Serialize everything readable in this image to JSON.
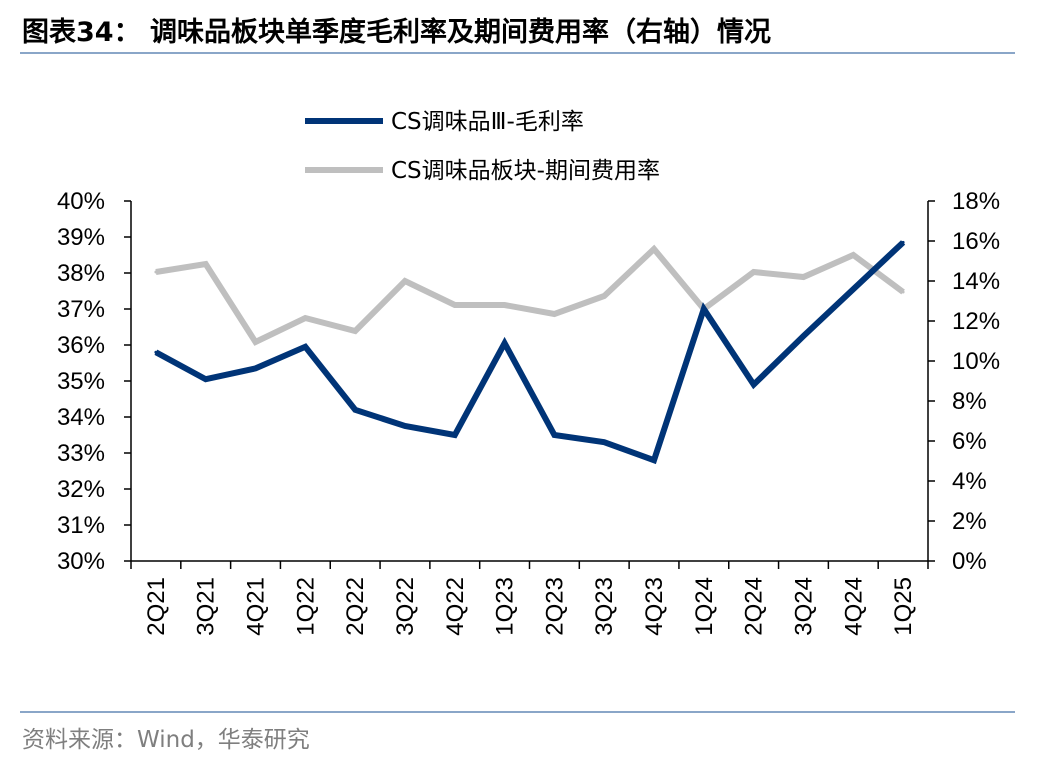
{
  "header": {
    "title": "图表34： 调味品板块单季度毛利率及期间费用率（右轴）情况"
  },
  "footer": {
    "source": "资料来源：Wind，华泰研究"
  },
  "colors": {
    "series_primary": "#003477",
    "series_secondary": "#bfbfbf",
    "rule": "#8aa6c8"
  },
  "chart_data": {
    "type": "line",
    "title": "调味品板块单季度毛利率及期间费用率（右轴）情况",
    "legend_position": "top-center",
    "grid": false,
    "categories": [
      "2Q21",
      "3Q21",
      "4Q21",
      "1Q22",
      "2Q22",
      "3Q22",
      "4Q22",
      "1Q23",
      "2Q23",
      "3Q23",
      "4Q23",
      "1Q24",
      "2Q24",
      "3Q24",
      "4Q24",
      "1Q25"
    ],
    "y_left": {
      "range": [
        30,
        40
      ],
      "ticks": [
        30,
        31,
        32,
        33,
        34,
        35,
        36,
        37,
        38,
        39,
        40
      ],
      "tick_labels": [
        "30%",
        "31%",
        "32%",
        "33%",
        "34%",
        "35%",
        "36%",
        "37%",
        "38%",
        "39%",
        "40%"
      ]
    },
    "y_right": {
      "range": [
        0,
        18
      ],
      "ticks": [
        0,
        2,
        4,
        6,
        8,
        10,
        12,
        14,
        16,
        18
      ],
      "tick_labels": [
        "0%",
        "2%",
        "4%",
        "6%",
        "8%",
        "10%",
        "12%",
        "14%",
        "16%",
        "18%"
      ]
    },
    "series": [
      {
        "name": "CS调味品Ⅲ-毛利率",
        "axis": "left",
        "color": "#003477",
        "values": [
          35.8,
          35.05,
          35.35,
          35.95,
          34.2,
          33.75,
          33.5,
          36.05,
          33.5,
          33.3,
          32.8,
          37.0,
          34.9,
          36.25,
          37.55,
          38.85
        ]
      },
      {
        "name": "CS调味品板块-期间费用率",
        "axis": "right",
        "color": "#bfbfbf",
        "values": [
          14.45,
          14.85,
          10.95,
          12.15,
          11.5,
          14.0,
          12.8,
          12.8,
          12.35,
          13.25,
          15.6,
          12.6,
          14.45,
          14.2,
          15.3,
          13.45
        ]
      }
    ]
  }
}
